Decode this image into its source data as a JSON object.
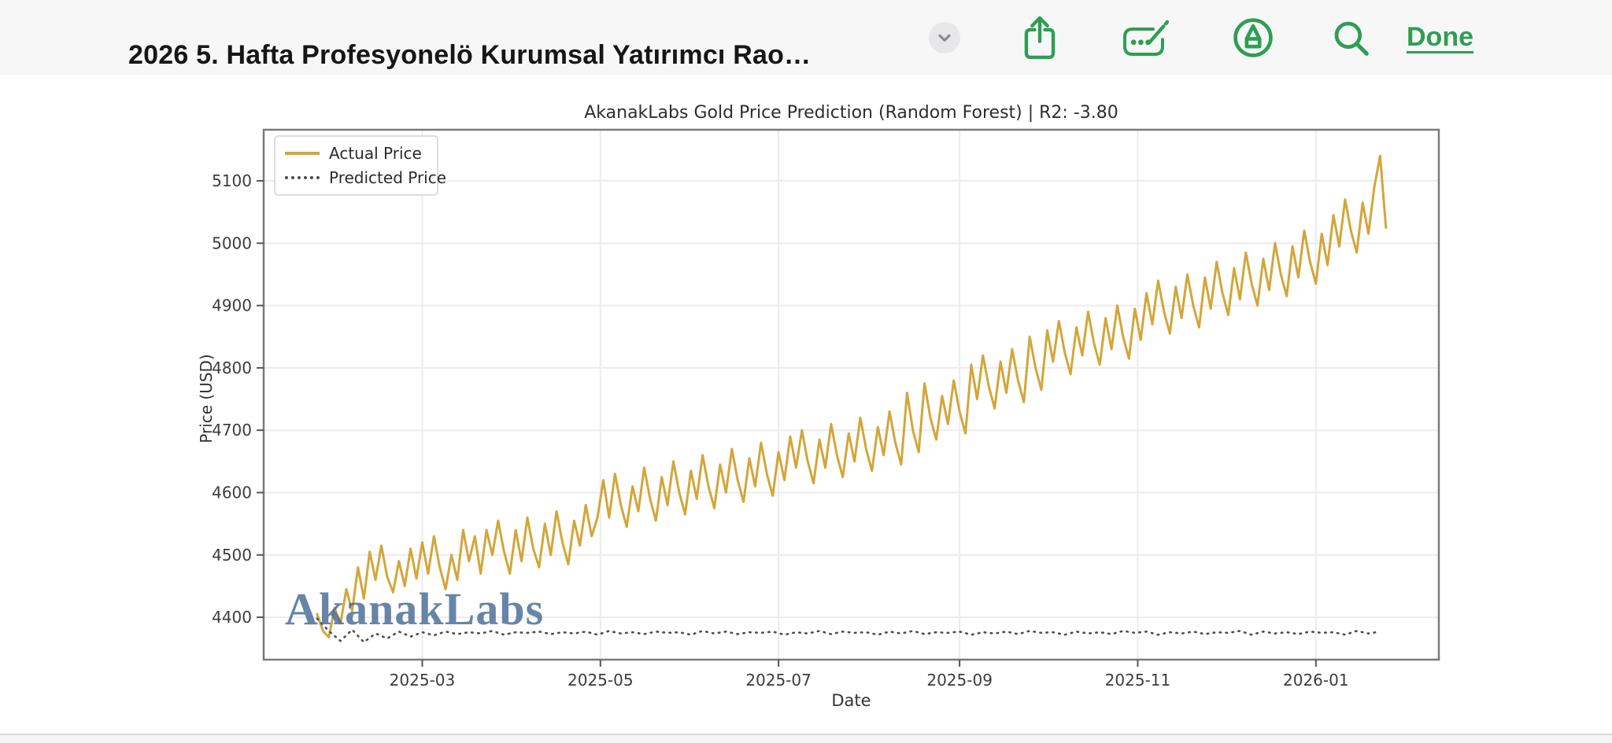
{
  "header": {
    "title": "2026 5. Hafta Profesyonelö Kurumsal Yatırımcı Rao…",
    "done_label": "Done",
    "accent_color": "#2e9e52",
    "toolbar_icons": [
      "chevron-down-icon",
      "share-icon",
      "markup-icon",
      "pen-circle-icon",
      "search-icon"
    ]
  },
  "chart_data": {
    "type": "line",
    "title": "AkanakLabs Gold Price Prediction (Random Forest) | R2: -3.80",
    "xlabel": "Date",
    "ylabel": "Price (USD)",
    "watermark": "AkanakLabs",
    "grid": true,
    "legend_position": "upper left",
    "colors": {
      "actual": "#d2a63a",
      "predicted": "#4d4d4d",
      "grid": "#ececec",
      "spine": "#7a7a7a",
      "tick": "#555555",
      "tick_text": "#3c3c3c"
    },
    "x_axis": {
      "tick_labels": [
        "2025-03",
        "2025-05",
        "2025-07",
        "2025-09",
        "2025-11",
        "2026-01"
      ],
      "tick_days": [
        36,
        97,
        158,
        220,
        281,
        342
      ],
      "lim_days": [
        -18.3,
        384.1
      ]
    },
    "y_axis": {
      "ticks": [
        4400,
        4500,
        4600,
        4700,
        4800,
        4900,
        5000,
        5100
      ],
      "lim": [
        4332,
        5182
      ]
    },
    "series": [
      {
        "name": "Actual Price",
        "style": "solid",
        "x_start_day": 0,
        "x_step_days": 2,
        "values": [
          4405,
          4378,
          4368,
          4415,
          4390,
          4445,
          4410,
          4480,
          4430,
          4505,
          4460,
          4515,
          4465,
          4440,
          4490,
          4450,
          4510,
          4462,
          4520,
          4470,
          4530,
          4480,
          4445,
          4500,
          4460,
          4540,
          4490,
          4530,
          4470,
          4540,
          4500,
          4555,
          4505,
          4470,
          4540,
          4490,
          4560,
          4510,
          4480,
          4550,
          4500,
          4570,
          4520,
          4485,
          4555,
          4515,
          4580,
          4530,
          4560,
          4620,
          4560,
          4630,
          4580,
          4545,
          4610,
          4570,
          4640,
          4590,
          4555,
          4625,
          4580,
          4650,
          4600,
          4565,
          4635,
          4590,
          4660,
          4610,
          4575,
          4645,
          4600,
          4670,
          4620,
          4585,
          4655,
          4610,
          4680,
          4630,
          4595,
          4665,
          4620,
          4690,
          4640,
          4700,
          4650,
          4615,
          4685,
          4640,
          4710,
          4660,
          4625,
          4695,
          4650,
          4720,
          4670,
          4635,
          4705,
          4660,
          4730,
          4680,
          4645,
          4760,
          4700,
          4665,
          4775,
          4720,
          4685,
          4755,
          4710,
          4780,
          4730,
          4695,
          4805,
          4750,
          4820,
          4770,
          4735,
          4810,
          4760,
          4830,
          4780,
          4745,
          4850,
          4800,
          4765,
          4860,
          4810,
          4875,
          4825,
          4790,
          4865,
          4820,
          4890,
          4840,
          4805,
          4880,
          4830,
          4900,
          4850,
          4815,
          4895,
          4845,
          4920,
          4870,
          4940,
          4890,
          4855,
          4930,
          4880,
          4950,
          4900,
          4865,
          4945,
          4895,
          4970,
          4920,
          4885,
          4960,
          4910,
          4985,
          4935,
          4900,
          4975,
          4925,
          5000,
          4950,
          4915,
          4995,
          4945,
          5020,
          4970,
          4935,
          5015,
          4965,
          5045,
          4995,
          5070,
          5020,
          4985,
          5065,
          5015,
          5090,
          5140,
          5025
        ]
      },
      {
        "name": "Predicted Price",
        "style": "dotted",
        "x_start_day": 0,
        "x_step_days": 4,
        "values": [
          4398,
          4378,
          4362,
          4380,
          4360,
          4374,
          4366,
          4377,
          4369,
          4376,
          4371,
          4377,
          4373,
          4376,
          4374,
          4378,
          4372,
          4376,
          4375,
          4377,
          4373,
          4376,
          4374,
          4377,
          4372,
          4378,
          4374,
          4376,
          4373,
          4377,
          4375,
          4376,
          4372,
          4378,
          4374,
          4377,
          4373,
          4376,
          4375,
          4377,
          4372,
          4376,
          4374,
          4378,
          4373,
          4377,
          4375,
          4376,
          4372,
          4377,
          4374,
          4378,
          4373,
          4376,
          4375,
          4377,
          4372,
          4376,
          4374,
          4377,
          4373,
          4378,
          4375,
          4376,
          4372,
          4377,
          4374,
          4376,
          4373,
          4378,
          4375,
          4377,
          4372,
          4376,
          4374,
          4377,
          4373,
          4376,
          4375,
          4378,
          4372,
          4377,
          4374,
          4376,
          4373,
          4377,
          4375,
          4376,
          4372,
          4378,
          4374,
          4377
        ]
      }
    ]
  }
}
